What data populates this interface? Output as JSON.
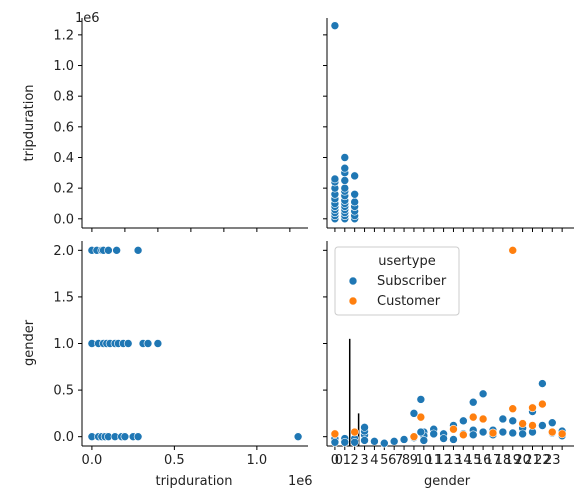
{
  "chart_data": {
    "type": "pairplot",
    "variables": [
      "tripduration",
      "gender"
    ],
    "hue": "usertype",
    "legend": {
      "title": "usertype",
      "entries": [
        {
          "name": "Subscriber",
          "color": "#1f77b4"
        },
        {
          "name": "Customer",
          "color": "#ff7f0e"
        }
      ],
      "placement": "upper-left of lower-right panel"
    },
    "axes": {
      "tripduration": {
        "label": "tripduration",
        "range": [
          -60000,
          1310000
        ],
        "ticks": [
          0,
          200000,
          400000,
          600000,
          800000,
          1000000,
          1200000
        ],
        "scatter_x_ticks": [
          0,
          500000,
          1000000
        ],
        "scatter_x_tick_labels": [
          "0.0",
          "0.5",
          "1.0"
        ],
        "y_tick_labels": [
          "0.0",
          "0.2",
          "0.4",
          "0.6",
          "0.8",
          "1.0",
          "1.2"
        ],
        "offset_text": "1e6"
      },
      "gender": {
        "label": "gender",
        "range": [
          -0.1,
          2.1
        ],
        "y_ticks": [
          0,
          0.5,
          1,
          1.5,
          2
        ],
        "y_tick_labels": [
          "0.0",
          "0.5",
          "1.0",
          "1.5",
          "2.0"
        ],
        "x_tick_labels": [
          "0",
          "0",
          "1",
          "2",
          "3",
          "4",
          "5",
          "6",
          "7",
          "8",
          "9",
          "10",
          "11",
          "12",
          "13",
          "14",
          "15",
          "16",
          "17",
          "18",
          "19",
          "20",
          "21",
          "22",
          "23"
        ]
      }
    },
    "panels": [
      {
        "position": "top-left",
        "type": "empty",
        "x": "tripduration",
        "y": "tripduration"
      },
      {
        "position": "top-right",
        "type": "scatter",
        "x": "gender",
        "y": "tripduration",
        "series": [
          {
            "name": "Subscriber",
            "points": [
              [
                0,
                0
              ],
              [
                0,
                20000
              ],
              [
                0,
                40000
              ],
              [
                0,
                60000
              ],
              [
                0,
                80000
              ],
              [
                0,
                100000
              ],
              [
                0,
                130000
              ],
              [
                0,
                160000
              ],
              [
                0,
                200000
              ],
              [
                0,
                240000
              ],
              [
                0,
                260000
              ],
              [
                0,
                1260000
              ],
              [
                1,
                0
              ],
              [
                1,
                20000
              ],
              [
                1,
                40000
              ],
              [
                1,
                60000
              ],
              [
                1,
                80000
              ],
              [
                1,
                100000
              ],
              [
                1,
                120000
              ],
              [
                1,
                150000
              ],
              [
                1,
                180000
              ],
              [
                1,
                200000
              ],
              [
                1,
                250000
              ],
              [
                1,
                300000
              ],
              [
                1,
                330000
              ],
              [
                1,
                400000
              ],
              [
                2,
                0
              ],
              [
                2,
                20000
              ],
              [
                2,
                50000
              ],
              [
                2,
                80000
              ],
              [
                2,
                110000
              ],
              [
                2,
                160000
              ],
              [
                2,
                280000
              ]
            ]
          }
        ]
      },
      {
        "position": "bottom-left",
        "type": "scatter",
        "x": "tripduration",
        "y": "gender",
        "series": [
          {
            "name": "Subscriber",
            "points": [
              [
                0,
                2
              ],
              [
                30000,
                2
              ],
              [
                60000,
                2
              ],
              [
                70000,
                2
              ],
              [
                100000,
                2
              ],
              [
                150000,
                2
              ],
              [
                280000,
                2
              ],
              [
                0,
                1
              ],
              [
                40000,
                1
              ],
              [
                70000,
                1
              ],
              [
                90000,
                1
              ],
              [
                110000,
                1
              ],
              [
                140000,
                1
              ],
              [
                160000,
                1
              ],
              [
                190000,
                1
              ],
              [
                220000,
                1
              ],
              [
                310000,
                1
              ],
              [
                340000,
                1
              ],
              [
                400000,
                1
              ],
              [
                0,
                0
              ],
              [
                40000,
                0
              ],
              [
                60000,
                0
              ],
              [
                80000,
                0
              ],
              [
                100000,
                0
              ],
              [
                140000,
                0
              ],
              [
                180000,
                0
              ],
              [
                200000,
                0
              ],
              [
                250000,
                0
              ],
              [
                280000,
                0
              ],
              [
                1250000,
                0
              ]
            ]
          }
        ]
      },
      {
        "position": "bottom-right",
        "type": "scatter",
        "x": "gender",
        "y": "gender",
        "series": [
          {
            "name": "Subscriber",
            "points": [
              [
                0,
                0.02
              ],
              [
                0,
                -0.02
              ],
              [
                0,
                -0.06
              ],
              [
                1,
                -0.02
              ],
              [
                1,
                -0.06
              ],
              [
                2,
                -0.02
              ],
              [
                2,
                -0.06
              ],
              [
                3,
                0.02
              ],
              [
                3,
                0.06
              ],
              [
                3,
                0.1
              ],
              [
                3,
                -0.04
              ],
              [
                4,
                -0.05
              ],
              [
                5,
                -0.07
              ],
              [
                6,
                -0.05
              ],
              [
                7,
                -0.03
              ],
              [
                8,
                -0.01
              ],
              [
                8,
                0.25
              ],
              [
                9,
                0.05
              ],
              [
                9,
                0.01
              ],
              [
                9,
                -0.04
              ],
              [
                10,
                0.08
              ],
              [
                10,
                0.03
              ],
              [
                11,
                0.03
              ],
              [
                11,
                -0.02
              ],
              [
                12,
                0.12
              ],
              [
                12,
                -0.03
              ],
              [
                13,
                0.17
              ],
              [
                13,
                0.03
              ],
              [
                14,
                0.07
              ],
              [
                14,
                0.02
              ],
              [
                14,
                0.37
              ],
              [
                15,
                0.46
              ],
              [
                15,
                0.05
              ],
              [
                16,
                0.07
              ],
              [
                16,
                0.02
              ],
              [
                17,
                0.19
              ],
              [
                17,
                0.05
              ],
              [
                18,
                0.17
              ],
              [
                18,
                0.04
              ],
              [
                19,
                0.09
              ],
              [
                19,
                0.03
              ],
              [
                20,
                0.27
              ],
              [
                20,
                0.05
              ],
              [
                21,
                0.57
              ],
              [
                21,
                0.12
              ],
              [
                22,
                0.15
              ],
              [
                22,
                0.04
              ],
              [
                23,
                0.06
              ],
              [
                23,
                0.01
              ],
              [
                8.7,
                0.4
              ],
              [
                8.7,
                0.05
              ]
            ]
          },
          {
            "name": "Customer",
            "points": [
              [
                0,
                0.03
              ],
              [
                2,
                0.05
              ],
              [
                8,
                0.0
              ],
              [
                8.7,
                0.21
              ],
              [
                12,
                0.08
              ],
              [
                13,
                0.02
              ],
              [
                14,
                0.21
              ],
              [
                15,
                0.19
              ],
              [
                16,
                0.04
              ],
              [
                18,
                0.3
              ],
              [
                18,
                2.0
              ],
              [
                19,
                0.14
              ],
              [
                20,
                0.31
              ],
              [
                20,
                0.12
              ],
              [
                21,
                0.35
              ],
              [
                22,
                0.05
              ],
              [
                23,
                0.03
              ]
            ]
          }
        ],
        "vertical_lines": [
          [
            1.5,
            -0.1,
            1.05
          ],
          [
            2.4,
            -0.1,
            0.25
          ]
        ]
      }
    ]
  }
}
